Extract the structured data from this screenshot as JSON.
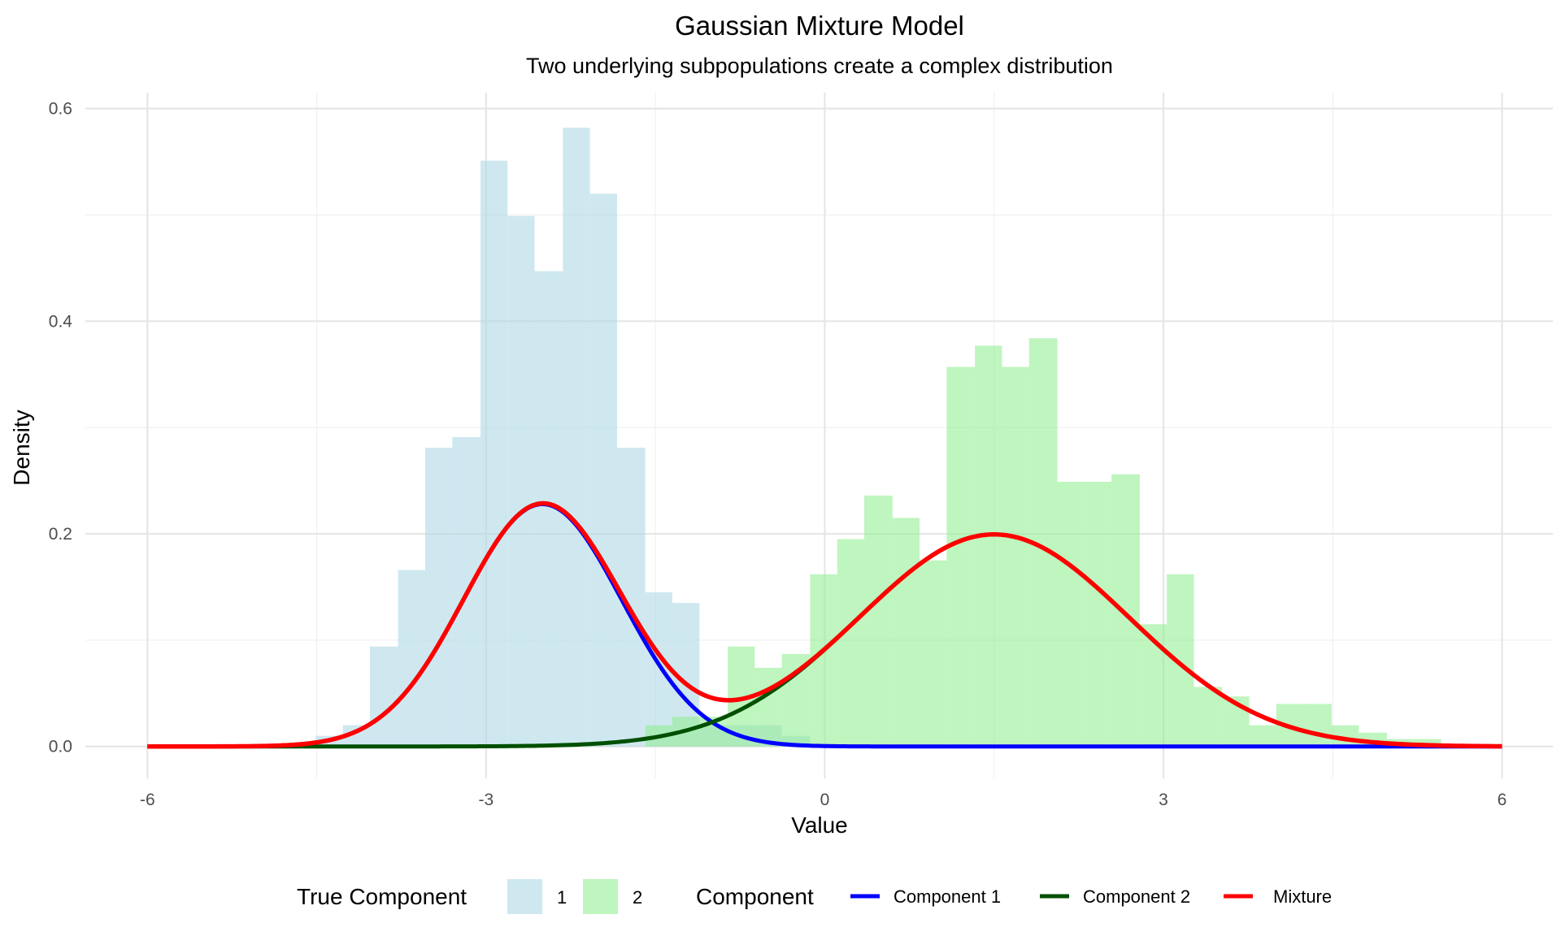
{
  "chart_data": {
    "type": "histogram+line",
    "title": "Gaussian Mixture Model",
    "subtitle": "Two underlying subpopulations create a complex distribution",
    "xlabel": "Value",
    "ylabel": "Density",
    "xlim": [
      -6.55,
      6.45
    ],
    "ylim": [
      -0.03,
      0.615
    ],
    "x_ticks": [
      -6,
      -3,
      0,
      3,
      6
    ],
    "x_tick_labels": [
      "-6",
      "-3",
      "0",
      "3",
      "6"
    ],
    "y_ticks": [
      0.0,
      0.2,
      0.4,
      0.6
    ],
    "y_tick_labels": [
      "0.0",
      "0.2",
      "0.4",
      "0.6"
    ],
    "grid": true,
    "histogram": {
      "bin_width": 0.2433,
      "series": [
        {
          "name": "1",
          "color": "#add8e6",
          "bins": [
            {
              "x0": -4.51,
              "x1": -4.27,
              "y": 0.01
            },
            {
              "x0": -4.27,
              "x1": -4.03,
              "y": 0.02
            },
            {
              "x0": -4.03,
              "x1": -3.78,
              "y": 0.094
            },
            {
              "x0": -3.78,
              "x1": -3.54,
              "y": 0.166
            },
            {
              "x0": -3.54,
              "x1": -3.3,
              "y": 0.281
            },
            {
              "x0": -3.3,
              "x1": -3.05,
              "y": 0.291
            },
            {
              "x0": -3.05,
              "x1": -2.81,
              "y": 0.551
            },
            {
              "x0": -2.81,
              "x1": -2.57,
              "y": 0.499
            },
            {
              "x0": -2.57,
              "x1": -2.32,
              "y": 0.447
            },
            {
              "x0": -2.32,
              "x1": -2.08,
              "y": 0.582
            },
            {
              "x0": -2.08,
              "x1": -1.84,
              "y": 0.52
            },
            {
              "x0": -1.84,
              "x1": -1.59,
              "y": 0.281
            },
            {
              "x0": -1.59,
              "x1": -1.35,
              "y": 0.145
            },
            {
              "x0": -1.35,
              "x1": -1.11,
              "y": 0.135
            },
            {
              "x0": -1.11,
              "x1": -0.86,
              "y": 0.02
            },
            {
              "x0": -0.86,
              "x1": -0.62,
              "y": 0.02
            },
            {
              "x0": -0.62,
              "x1": -0.38,
              "y": 0.02
            },
            {
              "x0": -0.38,
              "x1": -0.13,
              "y": 0.01
            }
          ]
        },
        {
          "name": "2",
          "color": "#90ee90",
          "bins": [
            {
              "x0": -1.59,
              "x1": -1.35,
              "y": 0.02
            },
            {
              "x0": -1.35,
              "x1": -1.11,
              "y": 0.028
            },
            {
              "x0": -1.11,
              "x1": -0.86,
              "y": 0.028
            },
            {
              "x0": -0.86,
              "x1": -0.62,
              "y": 0.094
            },
            {
              "x0": -0.62,
              "x1": -0.38,
              "y": 0.074
            },
            {
              "x0": -0.38,
              "x1": -0.13,
              "y": 0.087
            },
            {
              "x0": -0.13,
              "x1": 0.11,
              "y": 0.162
            },
            {
              "x0": 0.11,
              "x1": 0.35,
              "y": 0.195
            },
            {
              "x0": 0.35,
              "x1": 0.6,
              "y": 0.236
            },
            {
              "x0": 0.6,
              "x1": 0.84,
              "y": 0.215
            },
            {
              "x0": 0.84,
              "x1": 1.08,
              "y": 0.175
            },
            {
              "x0": 1.08,
              "x1": 1.33,
              "y": 0.357
            },
            {
              "x0": 1.33,
              "x1": 1.57,
              "y": 0.377
            },
            {
              "x0": 1.57,
              "x1": 1.81,
              "y": 0.357
            },
            {
              "x0": 1.81,
              "x1": 2.06,
              "y": 0.384
            },
            {
              "x0": 2.06,
              "x1": 2.3,
              "y": 0.249
            },
            {
              "x0": 2.3,
              "x1": 2.54,
              "y": 0.249
            },
            {
              "x0": 2.54,
              "x1": 2.79,
              "y": 0.256
            },
            {
              "x0": 2.79,
              "x1": 3.03,
              "y": 0.115
            },
            {
              "x0": 3.03,
              "x1": 3.27,
              "y": 0.162
            },
            {
              "x0": 3.27,
              "x1": 3.52,
              "y": 0.056
            },
            {
              "x0": 3.52,
              "x1": 3.76,
              "y": 0.047
            },
            {
              "x0": 3.76,
              "x1": 4.0,
              "y": 0.02
            },
            {
              "x0": 4.0,
              "x1": 4.25,
              "y": 0.04
            },
            {
              "x0": 4.25,
              "x1": 4.49,
              "y": 0.04
            },
            {
              "x0": 4.49,
              "x1": 4.73,
              "y": 0.02
            },
            {
              "x0": 4.73,
              "x1": 4.98,
              "y": 0.013
            },
            {
              "x0": 4.98,
              "x1": 5.22,
              "y": 0.007
            },
            {
              "x0": 5.22,
              "x1": 5.46,
              "y": 0.007
            }
          ]
        }
      ]
    },
    "components": [
      {
        "name": "Component 1",
        "color": "#0000ff",
        "weight": 0.4,
        "mean": -2.5,
        "sd": 0.7
      },
      {
        "name": "Component 2",
        "color": "#005000",
        "weight": 0.6,
        "mean": 1.5,
        "sd": 1.2
      }
    ],
    "mixture": {
      "name": "Mixture",
      "color": "#ff0000"
    },
    "legend": {
      "placement": "bottom",
      "fill_title": "True Component",
      "fill_items": [
        {
          "label": "1",
          "color": "#add8e6"
        },
        {
          "label": "2",
          "color": "#90ee90"
        }
      ],
      "line_title": "Component",
      "line_items": [
        {
          "label": "Component 1",
          "color": "#0000ff"
        },
        {
          "label": "Component 2",
          "color": "#005000"
        },
        {
          "label": "Mixture",
          "color": "#ff0000"
        }
      ]
    }
  }
}
